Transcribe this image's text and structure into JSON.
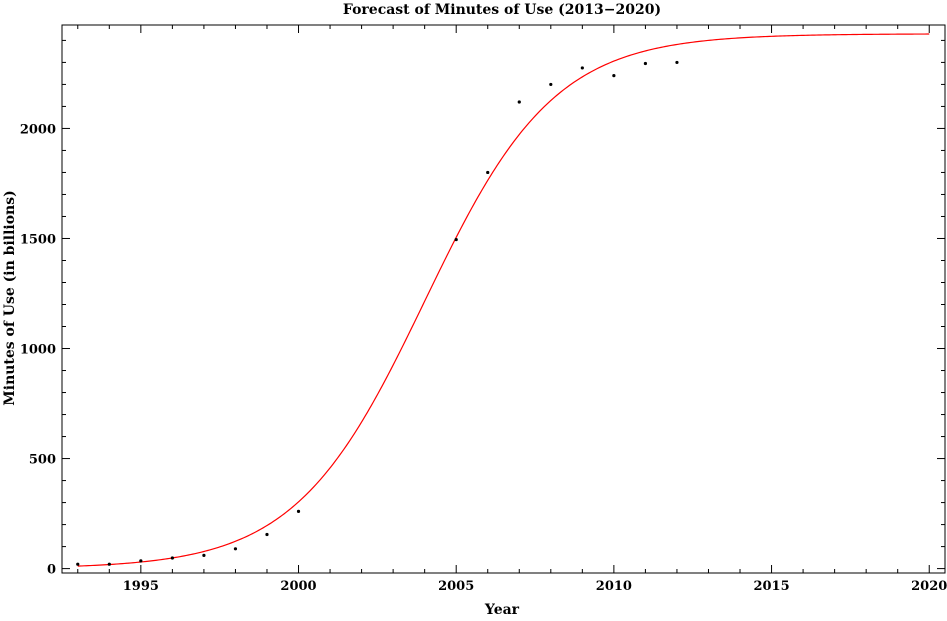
{
  "chart_data": {
    "type": "scatter",
    "title": "Forecast of Minutes of Use (2013−2020)",
    "xlabel": "Year",
    "ylabel": "Minutes of Use (in billions)",
    "xlim": [
      1992.5,
      2020.5
    ],
    "ylim": [
      -20,
      2470
    ],
    "x_ticks": [
      1995,
      2000,
      2005,
      2010,
      2015,
      2020
    ],
    "y_ticks": [
      0,
      500,
      1000,
      1500,
      2000
    ],
    "grid": false,
    "legend": "none",
    "series": [
      {
        "type": "scatter",
        "color": "#000000",
        "x": [
          1993,
          1994,
          1995,
          1996,
          1997,
          1998,
          1999,
          2000,
          2005,
          2006,
          2007,
          2008,
          2009,
          2010,
          2011,
          2012
        ],
        "y": [
          20,
          20,
          35,
          48,
          60,
          90,
          155,
          260,
          1495,
          1800,
          2120,
          2200,
          2275,
          2240,
          2295,
          2300
        ]
      },
      {
        "type": "line",
        "color": "#ff0000",
        "model": "logistic",
        "params": {
          "K": 2430,
          "x0": 2004.0,
          "k": 0.487
        },
        "x_range": [
          1993,
          2020
        ]
      }
    ]
  }
}
